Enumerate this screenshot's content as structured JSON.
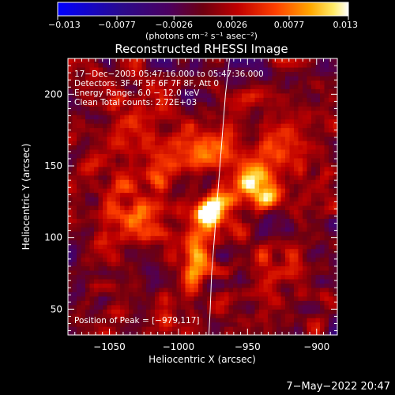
{
  "chart_data": {
    "type": "heatmap",
    "title": "Reconstructed RHESSI Image",
    "xlabel": "Heliocentric X (arcsec)",
    "ylabel": "Heliocentric Y (arcsec)",
    "xlim": [
      -1080,
      -885
    ],
    "ylim": [
      32,
      225
    ],
    "x_ticks": [
      -1050,
      -1000,
      -950,
      -900
    ],
    "x_tick_labels": [
      "−1050",
      "−1000",
      "−950",
      "−900"
    ],
    "y_ticks": [
      50,
      100,
      150,
      200
    ],
    "y_tick_labels": [
      "50",
      "100",
      "150",
      "200"
    ],
    "colorbar": {
      "min": -0.013,
      "max": 0.013,
      "ticks": [
        -0.013,
        -0.0077,
        -0.0026,
        0.0026,
        0.0077,
        0.013
      ],
      "tick_labels": [
        "−0.013",
        "−0.0077",
        "−0.0026",
        "0.0026",
        "0.0077",
        "0.013"
      ],
      "unit_label": "(photons cm⁻² s⁻¹ asec⁻²)",
      "colormap": "blue-purple-red-orange-yellow-white"
    },
    "annotations": [
      "17−Dec−2003 05:47:16.000 to 05:47:36.000",
      "Detectors: 3F 4F 5F 6F 7F 8F, Att 0",
      "Energy Range: 6.0 − 12.0 keV",
      "Clean    Total counts: 2.72E+03"
    ],
    "peak_label": "Position of Peak = [−979,117]",
    "peak": {
      "x": -979,
      "y": 117
    },
    "sources": [
      {
        "x": -979,
        "y": 117,
        "sx": 7,
        "sy": 7,
        "amp": 0.0125
      },
      {
        "x": -968,
        "y": 125,
        "sx": 9,
        "sy": 8,
        "amp": 0.009
      },
      {
        "x": -948,
        "y": 140,
        "sx": 8,
        "sy": 10,
        "amp": 0.0095
      },
      {
        "x": -938,
        "y": 130,
        "sx": 7,
        "sy": 8,
        "amp": 0.0075
      },
      {
        "x": -985,
        "y": 95,
        "sx": 8,
        "sy": 10,
        "amp": 0.0085
      },
      {
        "x": -988,
        "y": 75,
        "sx": 6,
        "sy": 7,
        "amp": 0.008
      },
      {
        "x": -1015,
        "y": 120,
        "sx": 14,
        "sy": 16,
        "amp": 0.0055
      },
      {
        "x": -1025,
        "y": 175,
        "sx": 20,
        "sy": 22,
        "amp": 0.0045
      },
      {
        "x": -975,
        "y": 165,
        "sx": 18,
        "sy": 14,
        "amp": 0.005
      },
      {
        "x": -920,
        "y": 160,
        "sx": 12,
        "sy": 18,
        "amp": 0.0045
      },
      {
        "x": -1040,
        "y": 110,
        "sx": 12,
        "sy": 14,
        "amp": 0.004
      },
      {
        "x": -930,
        "y": 80,
        "sx": 14,
        "sy": 12,
        "amp": 0.004
      },
      {
        "x": -1010,
        "y": 50,
        "sx": 14,
        "sy": 10,
        "amp": 0.0035
      }
    ],
    "limb": [
      {
        "x": -963,
        "y": 225
      },
      {
        "x": -966,
        "y": 200
      },
      {
        "x": -968,
        "y": 175
      },
      {
        "x": -970,
        "y": 150
      },
      {
        "x": -972,
        "y": 125
      },
      {
        "x": -974,
        "y": 100
      },
      {
        "x": -976,
        "y": 75
      },
      {
        "x": -977,
        "y": 50
      },
      {
        "x": -978,
        "y": 32
      }
    ]
  },
  "footer_date": "7−May−2022 20:47"
}
